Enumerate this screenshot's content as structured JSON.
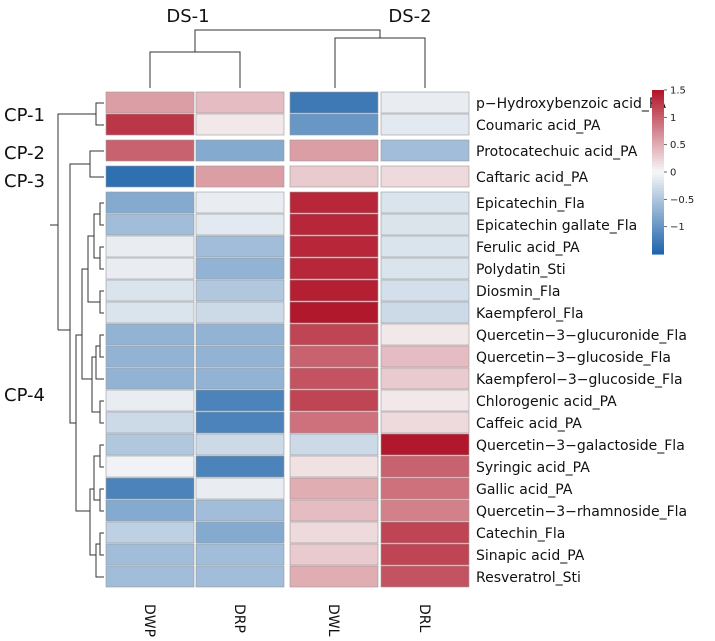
{
  "chart_data": {
    "type": "heatmap",
    "columns": [
      "DWP",
      "DRP",
      "DWL",
      "DRL"
    ],
    "column_groups": [
      {
        "label": "DS-1",
        "columns": [
          "DWP",
          "DRP"
        ]
      },
      {
        "label": "DS-2",
        "columns": [
          "DWL",
          "DRL"
        ]
      }
    ],
    "row_groups": [
      {
        "label": "CP-1",
        "rows": [
          0,
          1
        ]
      },
      {
        "label": "CP-2",
        "rows": [
          2
        ]
      },
      {
        "label": "CP-3",
        "rows": [
          3
        ]
      },
      {
        "label": "CP-4",
        "rows": [
          4,
          22
        ]
      }
    ],
    "rows": [
      {
        "label": "p−Hydroxybenzoic acid_PA",
        "values": [
          0.6,
          0.4,
          -1.3,
          -0.1
        ]
      },
      {
        "label": "Coumaric acid_PA",
        "values": [
          1.3,
          0.1,
          -1.0,
          -0.15
        ]
      },
      {
        "label": "Protocatechuic acid_PA",
        "values": [
          1.0,
          -0.8,
          0.6,
          -0.6
        ]
      },
      {
        "label": "Caftaric acid_PA",
        "values": [
          -1.4,
          0.6,
          0.3,
          0.2
        ]
      },
      {
        "label": "Epicatechin_Fla",
        "values": [
          -0.8,
          -0.1,
          1.4,
          -0.2
        ]
      },
      {
        "label": "Epicatechin gallate_Fla",
        "values": [
          -0.6,
          -0.15,
          1.4,
          -0.2
        ]
      },
      {
        "label": "Ferulic acid_PA",
        "values": [
          -0.1,
          -0.6,
          1.4,
          -0.2
        ]
      },
      {
        "label": "Polydatin_Sti",
        "values": [
          -0.1,
          -0.7,
          1.4,
          -0.2
        ]
      },
      {
        "label": "Diosmin_Fla",
        "values": [
          -0.2,
          -0.5,
          1.45,
          -0.25
        ]
      },
      {
        "label": "Kaempferol_Fla",
        "values": [
          -0.2,
          -0.3,
          1.5,
          -0.3
        ]
      },
      {
        "label": "Quercetin−3−glucuronide_Fla",
        "values": [
          -0.7,
          -0.7,
          1.2,
          0.1
        ]
      },
      {
        "label": "Quercetin−3−glucoside_Fla",
        "values": [
          -0.7,
          -0.7,
          1.0,
          0.4
        ]
      },
      {
        "label": "Kaempferol−3−glucoside_Fla",
        "values": [
          -0.7,
          -0.7,
          1.1,
          0.3
        ]
      },
      {
        "label": "Chlorogenic acid_PA",
        "values": [
          -0.1,
          -1.2,
          1.2,
          0.1
        ]
      },
      {
        "label": "Caffeic acid_PA",
        "values": [
          -0.3,
          -1.2,
          0.9,
          0.2
        ]
      },
      {
        "label": "Quercetin−3−galactoside_Fla",
        "values": [
          -0.5,
          -0.3,
          -0.3,
          1.5
        ]
      },
      {
        "label": "Syringic acid_PA",
        "values": [
          -0.05,
          -1.2,
          0.15,
          1.0
        ]
      },
      {
        "label": "Gallic acid_PA",
        "values": [
          -1.2,
          -0.1,
          0.5,
          0.9
        ]
      },
      {
        "label": "Quercetin−3−rhamnoside_Fla",
        "values": [
          -0.8,
          -0.6,
          0.4,
          0.8
        ]
      },
      {
        "label": "Catechin_Fla",
        "values": [
          -0.4,
          -0.8,
          0.2,
          1.2
        ]
      },
      {
        "label": "Sinapic acid_PA",
        "values": [
          -0.6,
          -0.6,
          0.3,
          1.2
        ]
      },
      {
        "label": "Resveratrol_Sti",
        "values": [
          -0.6,
          -0.6,
          0.5,
          1.1
        ]
      }
    ],
    "scale": {
      "min": -1.5,
      "max": 1.5,
      "low_color": "#2166ac",
      "mid_color": "#f7f7f7",
      "high_color": "#b2182b",
      "ticks": [
        1.5,
        1,
        0.5,
        0,
        -0.5,
        -1
      ],
      "tick_labels": [
        "1.5",
        "1",
        "0.5",
        "0",
        "−0.5",
        "−1"
      ]
    }
  }
}
